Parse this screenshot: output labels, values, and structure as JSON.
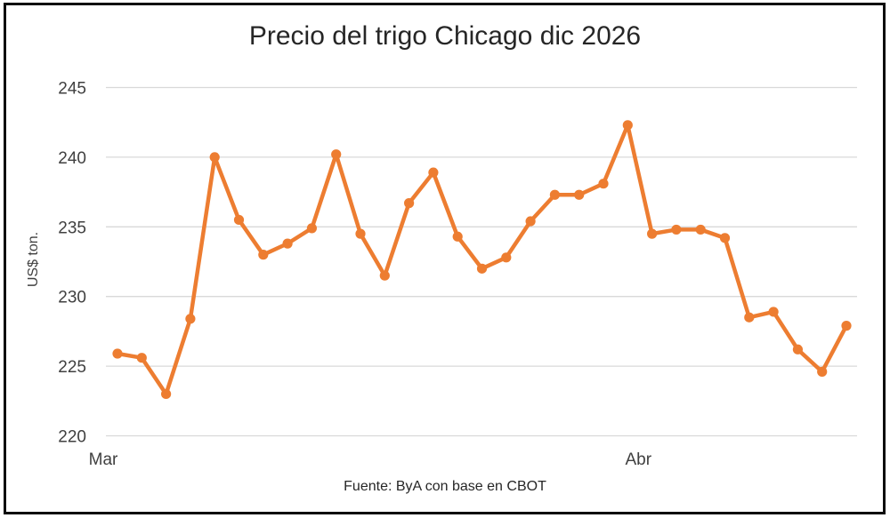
{
  "figure": {
    "title": "Precio del trigo Chicago dic 2026",
    "source_note": "Fuente: ByA con base en CBOT"
  },
  "chart_data": {
    "type": "line",
    "title": "Precio del trigo Chicago dic 2026",
    "xlabel": "",
    "ylabel": "US$ ton.",
    "ylim": [
      220,
      245
    ],
    "yticks": [
      220,
      225,
      230,
      235,
      240,
      245
    ],
    "grid": "horizontal",
    "legend": false,
    "x_axis_labels": [
      {
        "label": "Mar",
        "point_index": 0
      },
      {
        "label": "Abr",
        "point_index": 21
      }
    ],
    "series": [
      {
        "values": [
          225.9,
          225.6,
          223.0,
          228.4,
          240.0,
          235.5,
          233.0,
          233.8,
          234.9,
          240.2,
          234.5,
          231.5,
          236.7,
          238.9,
          234.3,
          232.0,
          232.8,
          235.4,
          237.3,
          237.3,
          238.1,
          242.3,
          234.5,
          234.8,
          234.8,
          234.2,
          228.5,
          228.9,
          226.2,
          224.6,
          227.9
        ]
      }
    ],
    "source": "Fuente: ByA con base en CBOT",
    "colors": {
      "line": "#ED7D31",
      "marker": "#ED7D31",
      "gridline": "#D9D9D9",
      "axis_text": "#404040",
      "title_text": "#262626",
      "border": "#0D0D0D"
    }
  }
}
